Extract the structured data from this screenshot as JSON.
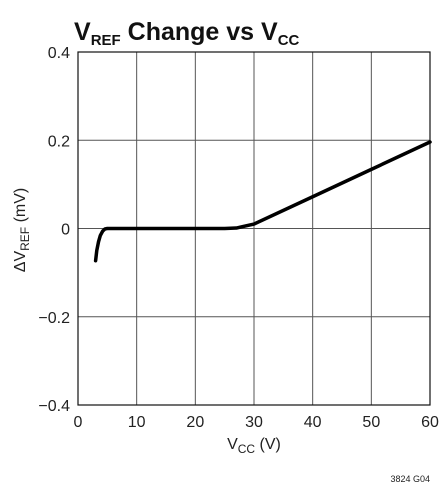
{
  "chart_data": {
    "type": "line",
    "title": {
      "main": "V",
      "sub1": "REF",
      "mid": " Change vs V",
      "sub2": "CC"
    },
    "xlabel": {
      "main": "V",
      "sub": "CC",
      "unit": " (V)"
    },
    "ylabel": {
      "main": "ΔV",
      "sub": "REF",
      "unit": " (mV)"
    },
    "xlim": [
      0,
      60
    ],
    "ylim": [
      -0.4,
      0.4
    ],
    "x_ticks": [
      0,
      10,
      20,
      30,
      40,
      50,
      60
    ],
    "x_tick_labels": [
      "0",
      "10",
      "20",
      "30",
      "40",
      "50",
      "60"
    ],
    "y_ticks": [
      0.4,
      0.2,
      0,
      -0.2,
      -0.4
    ],
    "y_tick_labels": [
      "0.4",
      "0.2",
      "0",
      "−0.2",
      "−0.4"
    ],
    "grid": true,
    "series": [
      {
        "x": [
          3.0,
          3.2,
          3.5,
          3.8,
          4.2,
          4.6,
          5.0,
          6.0,
          10,
          15,
          20,
          25,
          27.0,
          28.0,
          30,
          40,
          50,
          60
        ],
        "y": [
          -0.073,
          -0.05,
          -0.03,
          -0.016,
          -0.006,
          -0.001,
          0.0,
          0.0,
          0.0,
          0.0,
          0.0,
          0.0,
          0.001,
          0.004,
          0.01,
          0.072,
          0.134,
          0.196
        ]
      }
    ],
    "color": "#000000"
  },
  "figure_id": "3824 G04"
}
